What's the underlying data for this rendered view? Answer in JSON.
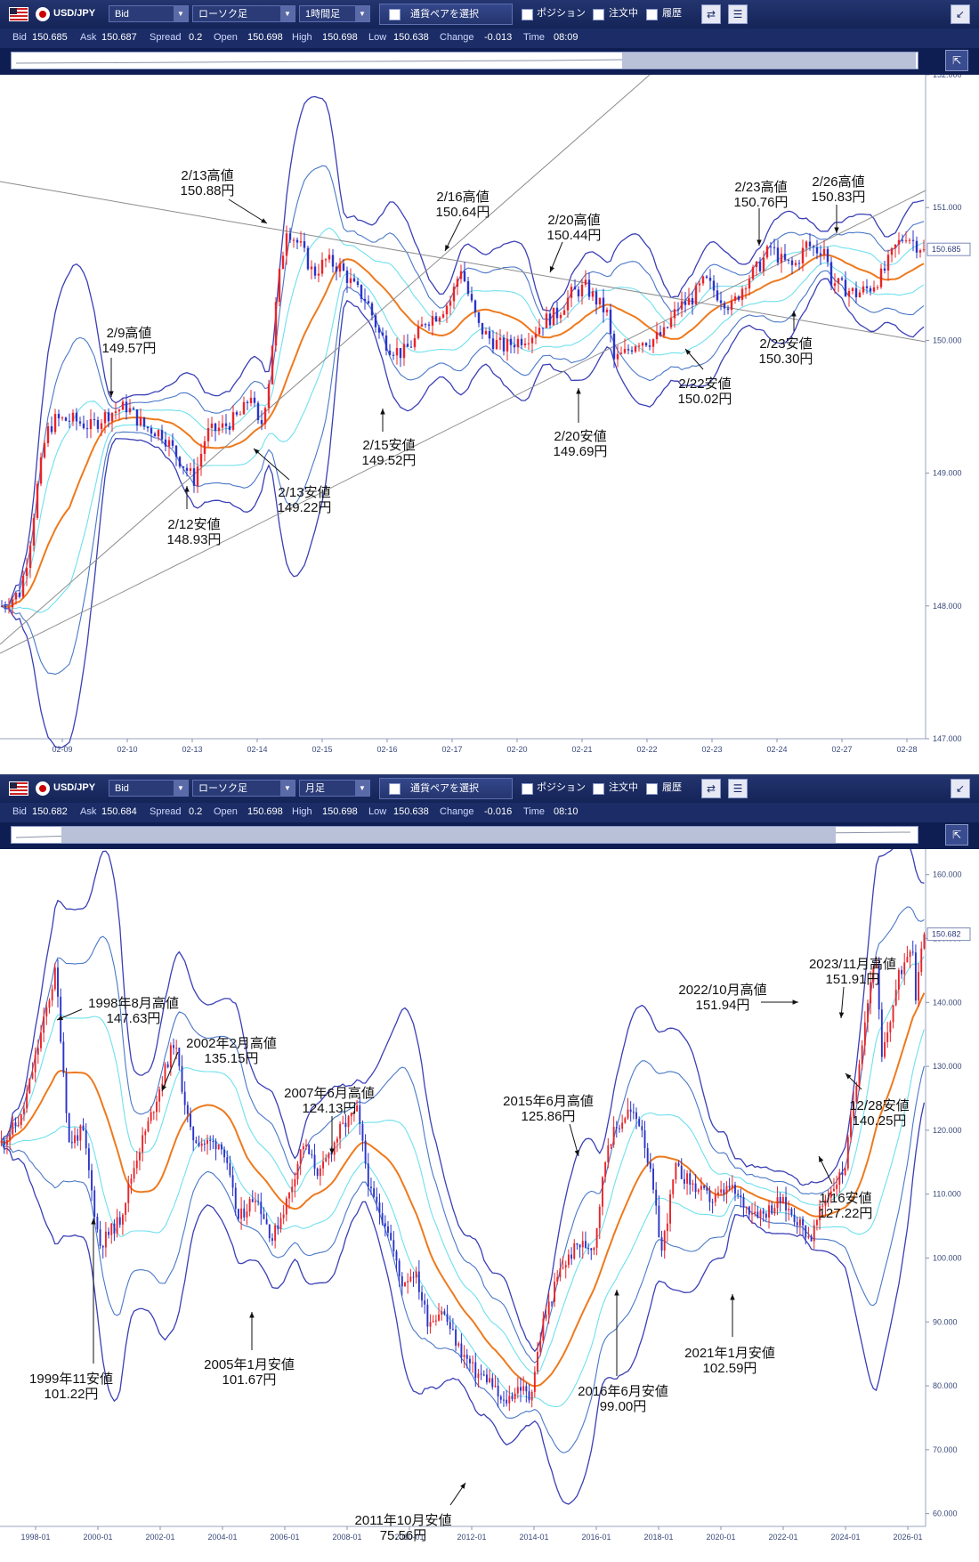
{
  "panels": [
    {
      "toolbar": {
        "symbol": "USD/JPY",
        "price_type": "Bid",
        "chart_type": "ローソク足",
        "timeframe": "1時間足",
        "pair_button": "通貨ペアを選択",
        "position_label": "ポジション",
        "order_label": "注文中",
        "history_label": "履歴"
      },
      "info": {
        "bid_label": "Bid",
        "bid": "150.685",
        "ask_label": "Ask",
        "ask": "150.687",
        "spread_label": "Spread",
        "spread": "0.2",
        "open_label": "Open",
        "open": "150.698",
        "high_label": "High",
        "high": "150.698",
        "low_label": "Low",
        "low": "150.638",
        "change_label": "Change",
        "change": "-0.013",
        "time_label": "Time",
        "time": "08:09"
      },
      "current_price_tag": "150.685"
    },
    {
      "toolbar": {
        "symbol": "USD/JPY",
        "price_type": "Bid",
        "chart_type": "ローソク足",
        "timeframe": "月足",
        "pair_button": "通貨ペアを選択",
        "position_label": "ポジション",
        "order_label": "注文中",
        "history_label": "履歴"
      },
      "info": {
        "bid_label": "Bid",
        "bid": "150.682",
        "ask_label": "Ask",
        "ask": "150.684",
        "spread_label": "Spread",
        "spread": "0.2",
        "open_label": "Open",
        "open": "150.698",
        "high_label": "High",
        "high": "150.698",
        "low_label": "Low",
        "low": "150.638",
        "change_label": "Change",
        "change": "-0.016",
        "time_label": "Time",
        "time": "08:10"
      },
      "current_price_tag": "150.682"
    }
  ],
  "colors": {
    "bull": "#e8252a",
    "bear": "#2b34c8",
    "ma": "#ee7a1e",
    "band_outer": "#3a3fb5",
    "band_mid": "#4a78c8",
    "band_inner": "#6fe0ee",
    "trendline": "#8c8c8c",
    "toolbar": "#1b2c66"
  },
  "chart_data": [
    {
      "type": "candlestick",
      "timeframe": "1時間足",
      "x_ticks": [
        "02-09",
        "02-10",
        "02-13",
        "02-14",
        "02-15",
        "02-16",
        "02-17",
        "02-20",
        "02-21",
        "02-22",
        "02-23",
        "02-24",
        "02-27",
        "02-28"
      ],
      "y_ticks": [
        "147.000",
        "148.000",
        "149.000",
        "150.000",
        "151.000",
        "152.000"
      ],
      "ylim": [
        147.0,
        152.0
      ],
      "current_price": 150.685,
      "path_points": [
        [
          0,
          148.0
        ],
        [
          5,
          148.05
        ],
        [
          10,
          148.1
        ],
        [
          15,
          148.4
        ],
        [
          20,
          148.9
        ],
        [
          25,
          149.3
        ],
        [
          30,
          149.4
        ],
        [
          40,
          149.4
        ],
        [
          50,
          149.35
        ],
        [
          60,
          149.45
        ],
        [
          70,
          149.5
        ],
        [
          80,
          149.35
        ],
        [
          90,
          149.3
        ],
        [
          100,
          149.1
        ],
        [
          108,
          148.95
        ],
        [
          115,
          149.3
        ],
        [
          125,
          149.35
        ],
        [
          135,
          149.45
        ],
        [
          140,
          149.6
        ],
        [
          145,
          149.3
        ],
        [
          150,
          149.7
        ],
        [
          155,
          150.4
        ],
        [
          160,
          150.85
        ],
        [
          168,
          150.7
        ],
        [
          175,
          150.5
        ],
        [
          182,
          150.6
        ],
        [
          190,
          150.55
        ],
        [
          198,
          150.4
        ],
        [
          205,
          150.3
        ],
        [
          212,
          150.05
        ],
        [
          218,
          149.95
        ],
        [
          225,
          149.9
        ],
        [
          232,
          150.0
        ],
        [
          238,
          150.15
        ],
        [
          245,
          150.2
        ],
        [
          252,
          150.3
        ],
        [
          258,
          150.55
        ],
        [
          262,
          150.35
        ],
        [
          268,
          150.1
        ],
        [
          275,
          150.0
        ],
        [
          282,
          149.95
        ],
        [
          290,
          150.0
        ],
        [
          298,
          150.05
        ],
        [
          305,
          150.15
        ],
        [
          312,
          150.2
        ],
        [
          320,
          150.35
        ],
        [
          328,
          150.4
        ],
        [
          334,
          150.3
        ],
        [
          340,
          150.2
        ],
        [
          344,
          149.85
        ],
        [
          350,
          149.9
        ],
        [
          357,
          150.0
        ],
        [
          365,
          150.0
        ],
        [
          372,
          150.05
        ],
        [
          380,
          150.25
        ],
        [
          387,
          150.3
        ],
        [
          395,
          150.45
        ],
        [
          402,
          150.35
        ],
        [
          410,
          150.25
        ],
        [
          418,
          150.45
        ],
        [
          425,
          150.55
        ],
        [
          432,
          150.7
        ],
        [
          438,
          150.6
        ],
        [
          445,
          150.55
        ],
        [
          452,
          150.72
        ],
        [
          458,
          150.68
        ],
        [
          462,
          150.7
        ],
        [
          466,
          150.45
        ],
        [
          472,
          150.4
        ],
        [
          480,
          150.35
        ],
        [
          488,
          150.4
        ],
        [
          495,
          150.5
        ],
        [
          502,
          150.7
        ],
        [
          508,
          150.8
        ],
        [
          514,
          150.72
        ],
        [
          520,
          150.685
        ]
      ],
      "annotations": [
        {
          "label": "2/9高値",
          "value": "149.57円",
          "idx": 70
        },
        {
          "label": "2/12安値",
          "value": "148.93円",
          "idx": 108
        },
        {
          "label": "2/13高値",
          "value": "150.88円",
          "idx": 160
        },
        {
          "label": "2/13安値",
          "value": "149.22円",
          "idx": 145
        },
        {
          "label": "2/15安値",
          "value": "149.52円",
          "idx": 225
        },
        {
          "label": "2/16高値",
          "value": "150.64円",
          "idx": 258
        },
        {
          "label": "2/20高値",
          "value": "150.44円",
          "idx": 328
        },
        {
          "label": "2/20安値",
          "value": "149.69円",
          "idx": 344
        },
        {
          "label": "2/22安値",
          "value": "150.02円",
          "idx": 410
        },
        {
          "label": "2/23高値",
          "value": "150.76円",
          "idx": 452
        },
        {
          "label": "2/23安値",
          "value": "150.30円",
          "idx": 480
        },
        {
          "label": "2/26高値",
          "value": "150.83円",
          "idx": 508
        }
      ]
    },
    {
      "type": "candlestick",
      "timeframe": "月足",
      "x_ticks": [
        "1998-01",
        "2000-01",
        "2002-01",
        "2004-01",
        "2006-01",
        "2008-01",
        "2010-01",
        "2012-01",
        "2014-01",
        "2016-01",
        "2018-01",
        "2020-01",
        "2022-01",
        "2024-01",
        "2026-01"
      ],
      "y_ticks": [
        "60.000",
        "70.000",
        "80.000",
        "90.000",
        "100.000",
        "110.000",
        "120.000",
        "130.000",
        "140.000",
        "150.000",
        "160.000"
      ],
      "ylim": [
        58.0,
        164.0
      ],
      "current_price": 150.682,
      "path_points": [
        [
          1997.0,
          118
        ],
        [
          1997.6,
          122
        ],
        [
          1998.6,
          145
        ],
        [
          1999.0,
          118
        ],
        [
          1999.4,
          120
        ],
        [
          1999.9,
          102
        ],
        [
          2000.5,
          106
        ],
        [
          2001.0,
          116
        ],
        [
          2001.4,
          122
        ],
        [
          2002.1,
          134
        ],
        [
          2002.6,
          119
        ],
        [
          2003.0,
          118
        ],
        [
          2003.5,
          118
        ],
        [
          2004.0,
          106
        ],
        [
          2004.5,
          110
        ],
        [
          2005.0,
          103
        ],
        [
          2005.5,
          110
        ],
        [
          2005.9,
          118
        ],
        [
          2006.4,
          113
        ],
        [
          2007.0,
          120
        ],
        [
          2007.5,
          123
        ],
        [
          2007.9,
          110
        ],
        [
          2008.4,
          105
        ],
        [
          2008.8,
          96
        ],
        [
          2009.2,
          98
        ],
        [
          2009.6,
          90
        ],
        [
          2010.0,
          92
        ],
        [
          2010.5,
          86
        ],
        [
          2011.0,
          82
        ],
        [
          2011.4,
          81
        ],
        [
          2011.8,
          77
        ],
        [
          2012.3,
          80
        ],
        [
          2012.6,
          78
        ],
        [
          2013.0,
          90
        ],
        [
          2013.5,
          98
        ],
        [
          2014.0,
          102
        ],
        [
          2014.5,
          102
        ],
        [
          2014.9,
          118
        ],
        [
          2015.5,
          123
        ],
        [
          2015.9,
          121
        ],
        [
          2016.2,
          112
        ],
        [
          2016.5,
          101
        ],
        [
          2016.9,
          114
        ],
        [
          2017.5,
          111
        ],
        [
          2018.0,
          109
        ],
        [
          2018.5,
          111
        ],
        [
          2019.0,
          108
        ],
        [
          2019.5,
          107
        ],
        [
          2020.0,
          109
        ],
        [
          2020.5,
          106
        ],
        [
          2020.9,
          103
        ],
        [
          2021.3,
          109
        ],
        [
          2021.9,
          114
        ],
        [
          2022.3,
          130
        ],
        [
          2022.8,
          148
        ],
        [
          2023.0,
          131
        ],
        [
          2023.5,
          144
        ],
        [
          2023.9,
          150
        ],
        [
          2024.0,
          141
        ],
        [
          2024.2,
          150.68
        ]
      ],
      "annotations": [
        {
          "label": "1998年8月高値",
          "value": "147.63円",
          "t": 1998.6
        },
        {
          "label": "1999年11安値",
          "value": "101.22円",
          "t": 1999.9
        },
        {
          "label": "2002年2月高値",
          "value": "135.15円",
          "t": 2002.1
        },
        {
          "label": "2005年1月安値",
          "value": "101.67円",
          "t": 2005.0
        },
        {
          "label": "2007年6月高値",
          "value": "124.13円",
          "t": 2007.5
        },
        {
          "label": "2011年10月安値",
          "value": "75.56円",
          "t": 2011.8
        },
        {
          "label": "2015年6月高値",
          "value": "125.86円",
          "t": 2015.5
        },
        {
          "label": "2016年6月安値",
          "value": "99.00円",
          "t": 2016.5
        },
        {
          "label": "2021年1月安値",
          "value": "102.59円",
          "t": 2020.9
        },
        {
          "label": "2022/10月高値",
          "value": "151.94円",
          "t": 2022.8
        },
        {
          "label": "2023/11月高値",
          "value": "151.91円",
          "t": 2023.9
        },
        {
          "label": "12/28安値",
          "value": "140.25円",
          "t": 2024.0
        },
        {
          "label": "1/16安値",
          "value": "127.22円",
          "t": 2023.0
        }
      ]
    }
  ]
}
